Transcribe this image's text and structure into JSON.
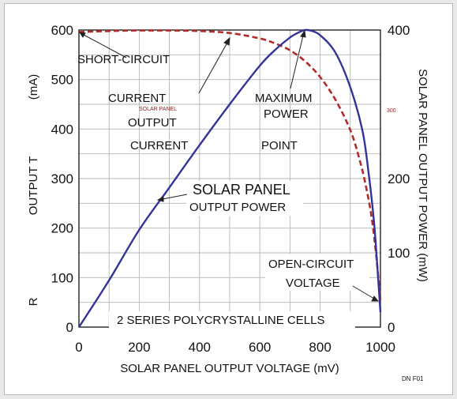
{
  "chart_data": {
    "type": "line",
    "xlabel": "SOLAR PANEL OUTPUT VOLTAGE (mV)",
    "ylabel_left": "OUTPUT  T",
    "ylabel_left_unit": "(mA)",
    "ylabel_left_extra": "R",
    "ylabel_right": "SOLAR PANEL  OUTPUT  POWER  (mW)",
    "xlim": [
      0,
      1000
    ],
    "ylim_left": [
      0,
      600
    ],
    "ylim_right": [
      0,
      400
    ],
    "x_ticks": [
      "0",
      "200",
      "400",
      "600",
      "800",
      "1000"
    ],
    "y_left_ticks": [
      {
        "value": 0,
        "label": "0"
      },
      {
        "value": 100,
        "label": "100"
      },
      {
        "value": 200,
        "label": "200"
      },
      {
        "value": 300,
        "label": "300"
      },
      {
        "value": 400,
        "label": "400"
      },
      {
        "value": 500,
        "label": "500"
      },
      {
        "value": 600,
        "label": "600"
      }
    ],
    "y_right_ticks": [
      {
        "value": 0,
        "label": "0"
      },
      {
        "value": 100,
        "label": "100"
      },
      {
        "value": 200,
        "label": "200"
      },
      {
        "value": 400,
        "label": "400"
      }
    ],
    "grid": true,
    "series": [
      {
        "key": "current",
        "axis": "left",
        "color": "#b22a2a",
        "style": "dashed",
        "x": [
          0,
          100,
          200,
          300,
          400,
          500,
          600,
          650,
          700,
          750,
          800,
          850,
          900,
          930,
          950,
          970,
          985,
          1000
        ],
        "y": [
          596,
          598,
          599,
          599,
          598,
          594,
          583,
          573,
          559,
          537,
          505,
          460,
          398,
          340,
          290,
          225,
          150,
          55
        ]
      },
      {
        "key": "power",
        "axis": "right",
        "color": "#333399",
        "style": "solid",
        "x": [
          0,
          100,
          200,
          300,
          400,
          500,
          600,
          650,
          700,
          730,
          750,
          770,
          800,
          850,
          900,
          940,
          960,
          980,
          1000
        ],
        "y": [
          0,
          63,
          131,
          188,
          245,
          300,
          352,
          373,
          390,
          397,
          400,
          399,
          393,
          370,
          323,
          265,
          210,
          135,
          20
        ]
      }
    ],
    "annotations": {
      "short_circuit": "SHORT-CIRCUIT",
      "current_1": "CURRENT",
      "solar_panel_small": "SOLAR PANEL",
      "output": "OUTPUT",
      "current_2": "CURRENT",
      "maximum": "MAXIMUM",
      "power": "POWER",
      "point": "POINT",
      "small_300": "300",
      "solar_panel": "SOLAR PANEL",
      "output_power": "OUTPUT POWER",
      "open_circuit": "OPEN-CIRCUIT",
      "voltage": "VOLTAGE",
      "cells": "2 SERIES POLYCRYSTALLINE CELLS",
      "figure_id": "DN F01"
    }
  }
}
